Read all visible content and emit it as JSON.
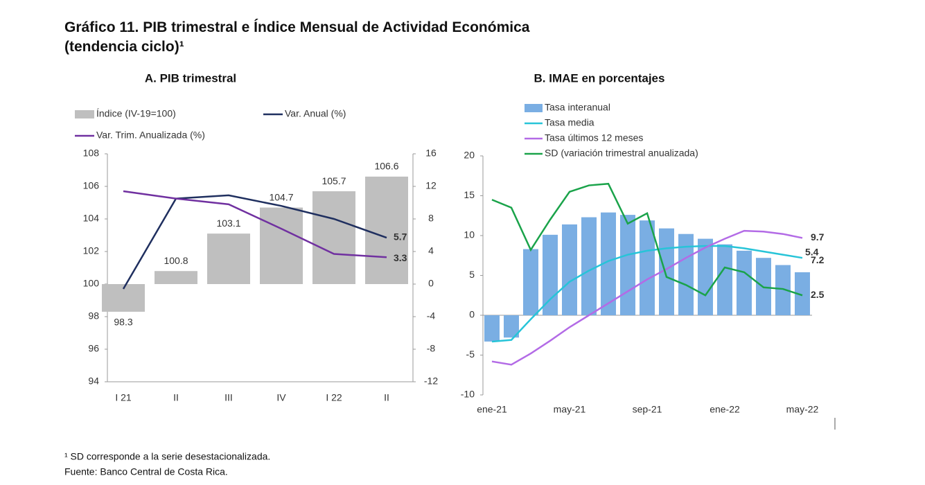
{
  "title": "Gráfico 11. PIB trimestral e Índice Mensual de Actividad Económica (tendencia ciclo)¹",
  "footnotes": [
    "¹ SD corresponde a la serie desestacionalizada.",
    "Fuente: Banco Central de Costa Rica."
  ],
  "chart_data": [
    {
      "type": "combo",
      "title": "A. PIB trimestral",
      "categories": [
        "I 21",
        "II",
        "III",
        "IV",
        "I 22",
        "II"
      ],
      "ylim": [
        94,
        108
      ],
      "yticks": [
        94,
        96,
        98,
        100,
        102,
        104,
        106,
        108
      ],
      "y2lim": [
        -12,
        16
      ],
      "y2ticks": [
        -12,
        -8,
        -4,
        0,
        4,
        8,
        12,
        16
      ],
      "bar_base": 100,
      "series": [
        {
          "name": "Índice (IV-19=100)",
          "type": "bar",
          "color": "#bfbfbf",
          "values": [
            98.3,
            100.8,
            103.1,
            104.7,
            105.7,
            106.6
          ]
        },
        {
          "name": "Var. Anual (%)",
          "type": "line",
          "axis": "y2",
          "color": "#1f2f5f",
          "values": [
            -0.6,
            10.5,
            10.9,
            9.6,
            8.0,
            5.7
          ]
        },
        {
          "name": "Var. Trim. Anualizada (%)",
          "type": "line",
          "axis": "y2",
          "color": "#7030a0",
          "values": [
            11.4,
            10.5,
            9.8,
            6.8,
            3.7,
            3.3
          ]
        }
      ]
    },
    {
      "type": "combo",
      "title": "B. IMAE en porcentajes",
      "categories": [
        "ene-21",
        null,
        null,
        null,
        "may-21",
        null,
        null,
        null,
        "sep-21",
        null,
        null,
        null,
        "ene-22",
        null,
        null,
        null,
        "may-22"
      ],
      "ylim": [
        -10,
        20
      ],
      "yticks": [
        -10,
        -5,
        0,
        5,
        10,
        15,
        20
      ],
      "series": [
        {
          "name": "Tasa interanual",
          "type": "bar",
          "color": "#7aaee3",
          "values": [
            -3.3,
            -2.8,
            8.3,
            10.1,
            11.4,
            12.3,
            12.9,
            12.6,
            11.9,
            10.9,
            10.2,
            9.6,
            8.9,
            8.1,
            7.2,
            6.3,
            5.4
          ]
        },
        {
          "name": "Tasa media",
          "type": "line",
          "color": "#27c4d8",
          "values": [
            -3.3,
            -3.1,
            -0.5,
            2.0,
            4.2,
            5.6,
            6.8,
            7.6,
            8.1,
            8.4,
            8.6,
            8.7,
            8.7,
            8.4,
            8.0,
            7.6,
            7.2
          ]
        },
        {
          "name": "Tasa últimos 12 meses",
          "type": "line",
          "color": "#b36be6",
          "values": [
            -5.8,
            -6.2,
            -4.8,
            -3.2,
            -1.5,
            0.0,
            1.5,
            3.0,
            4.5,
            5.8,
            7.2,
            8.5,
            9.6,
            10.6,
            10.5,
            10.2,
            9.7
          ]
        },
        {
          "name": "SD (variación trimestral anualizada)",
          "type": "line",
          "color": "#1aa34a",
          "values": [
            14.5,
            13.5,
            8.2,
            12.0,
            15.5,
            16.3,
            16.5,
            11.5,
            12.8,
            4.8,
            3.8,
            2.5,
            6.0,
            5.4,
            3.5,
            3.3,
            2.5
          ]
        }
      ]
    }
  ]
}
